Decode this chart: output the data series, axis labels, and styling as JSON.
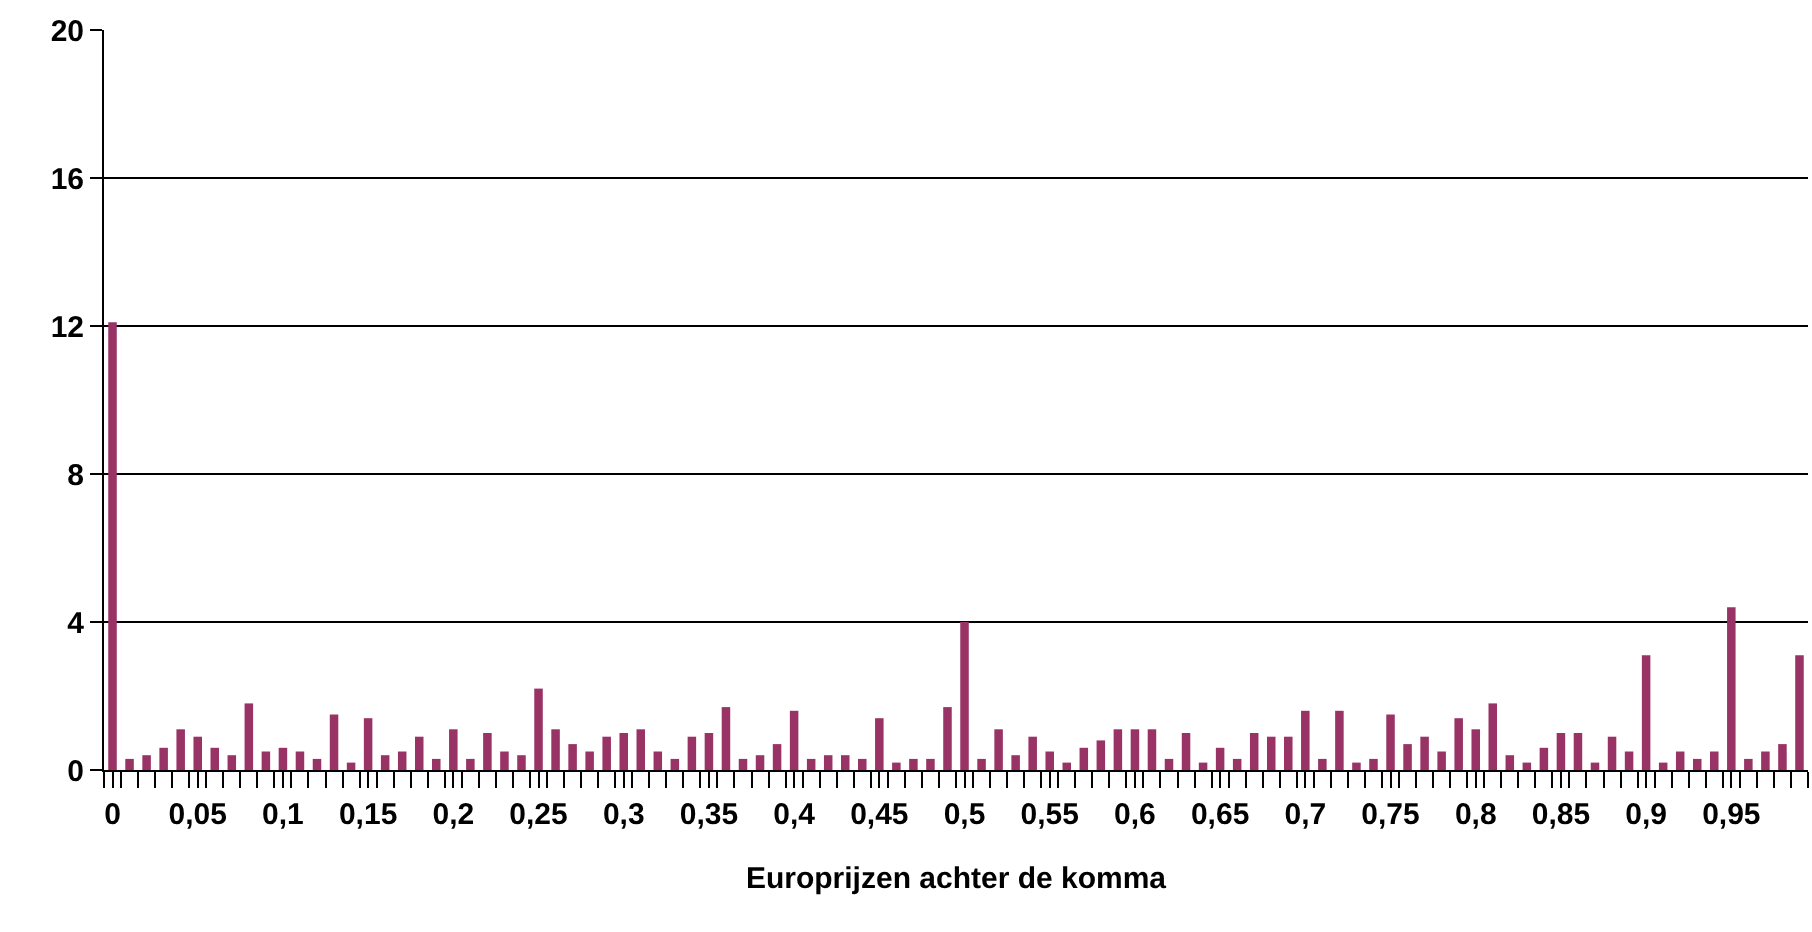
{
  "chart_data": {
    "type": "bar",
    "xlabel": "Europrijzen achter de komma",
    "categories": [
      "0",
      null,
      null,
      null,
      null,
      "0,05",
      null,
      null,
      null,
      null,
      "0,1",
      null,
      null,
      null,
      null,
      "0,15",
      null,
      null,
      null,
      null,
      "0,2",
      null,
      null,
      null,
      null,
      "0,25",
      null,
      null,
      null,
      null,
      "0,3",
      null,
      null,
      null,
      null,
      "0,35",
      null,
      null,
      null,
      null,
      "0,4",
      null,
      null,
      null,
      null,
      "0,45",
      null,
      null,
      null,
      null,
      "0,5",
      null,
      null,
      null,
      null,
      "0,55",
      null,
      null,
      null,
      null,
      "0,6",
      null,
      null,
      null,
      null,
      "0,65",
      null,
      null,
      null,
      null,
      "0,7",
      null,
      null,
      null,
      null,
      "0,75",
      null,
      null,
      null,
      null,
      "0,8",
      null,
      null,
      null,
      null,
      "0,85",
      null,
      null,
      null,
      null,
      "0,9",
      null,
      null,
      null,
      null,
      "0,95",
      null,
      null,
      null,
      null
    ],
    "values": [
      12.1,
      0.3,
      0.4,
      0.6,
      1.1,
      0.9,
      0.6,
      0.4,
      1.8,
      0.5,
      0.6,
      0.5,
      0.3,
      1.5,
      0.2,
      1.4,
      0.4,
      0.5,
      0.9,
      0.3,
      1.1,
      0.3,
      1.0,
      0.5,
      0.4,
      2.2,
      1.1,
      0.7,
      0.5,
      0.9,
      1.0,
      1.1,
      0.5,
      0.3,
      0.9,
      1.0,
      1.7,
      0.3,
      0.4,
      0.7,
      1.6,
      0.3,
      0.4,
      0.4,
      0.3,
      1.4,
      0.2,
      0.3,
      0.3,
      1.7,
      4.0,
      0.3,
      1.1,
      0.4,
      0.9,
      0.5,
      0.2,
      0.6,
      0.8,
      1.1,
      1.1,
      1.1,
      0.3,
      1.0,
      0.2,
      0.6,
      0.3,
      1.0,
      0.9,
      0.9,
      1.6,
      0.3,
      1.6,
      0.2,
      0.3,
      1.5,
      0.7,
      0.9,
      0.5,
      1.4,
      1.1,
      1.8,
      0.4,
      0.2,
      0.6,
      1.0,
      1.0,
      0.2,
      0.9,
      0.5,
      3.1,
      0.2,
      0.5,
      0.3,
      0.5,
      4.4,
      0.3,
      0.5,
      0.7,
      3.1
    ],
    "color": "#993366",
    "ylim": [
      0,
      20
    ],
    "yticks": [
      0,
      4,
      8,
      12,
      16,
      20
    ],
    "grid": "y"
  }
}
